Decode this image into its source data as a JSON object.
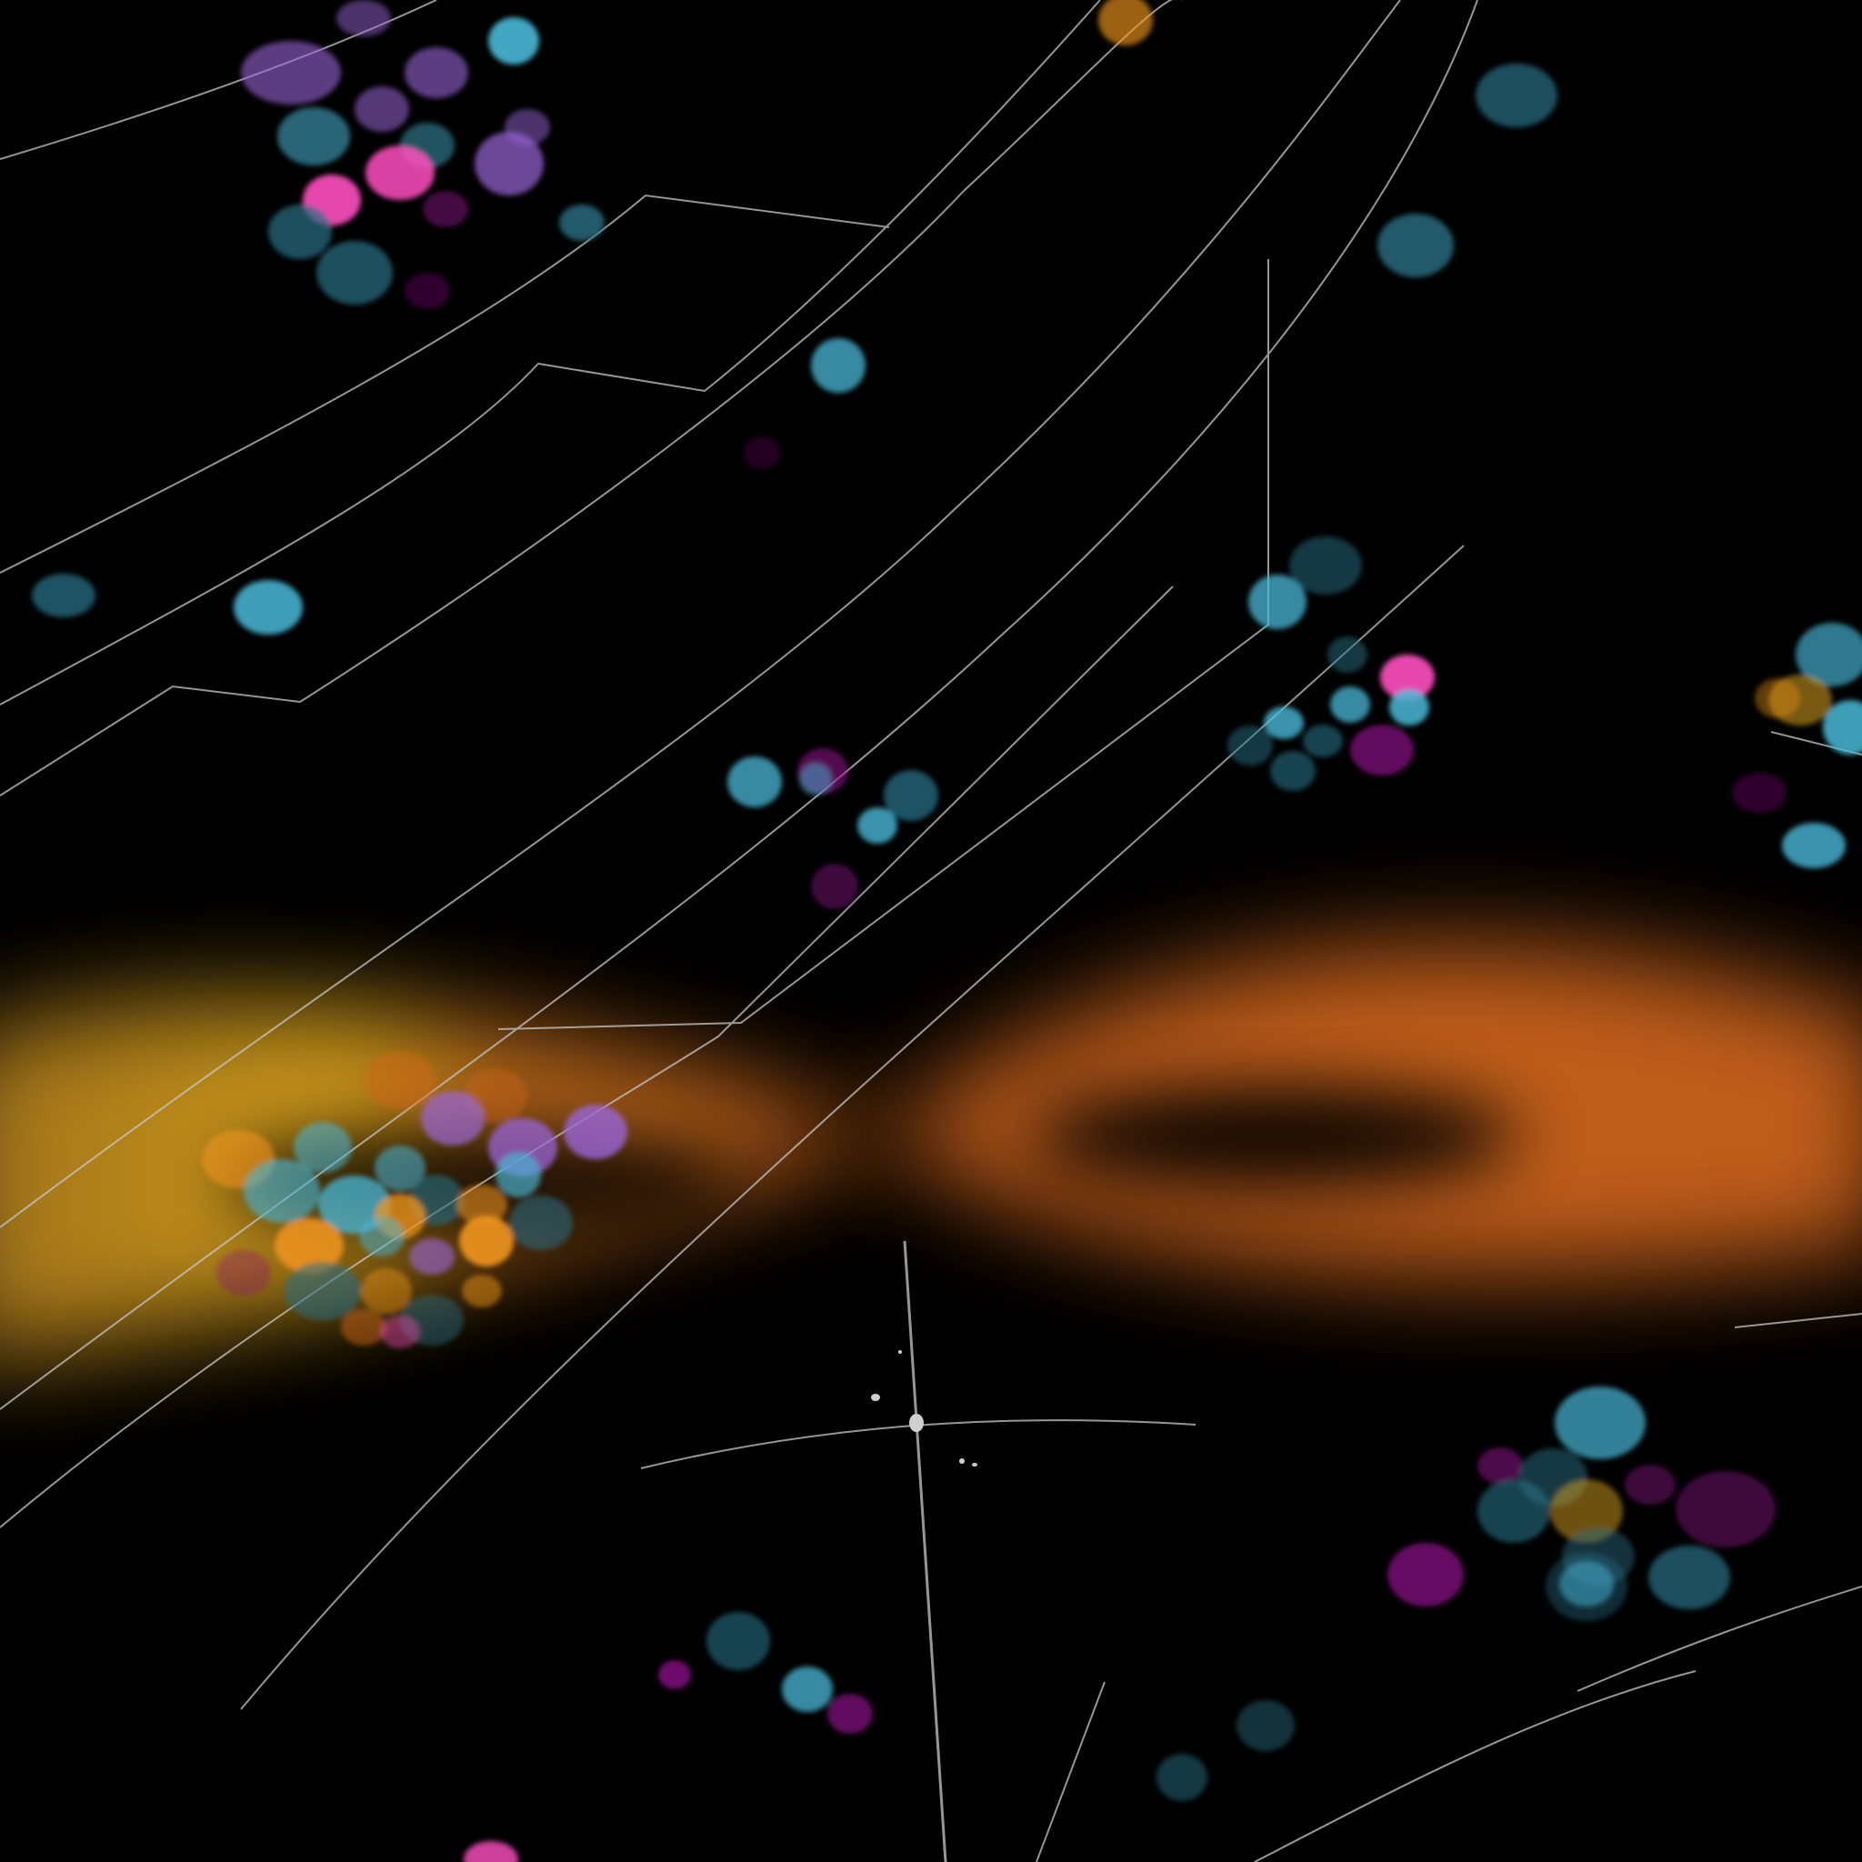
{
  "scene": {
    "background_color": "#000000",
    "line_color": "#c8c8c8",
    "colors": {
      "cyan": "#4ab8d8",
      "teal": "#2a6f86",
      "magenta": "#8a0f86",
      "pink": "#ff4fc0",
      "violet": "#9a66d8",
      "orange": "#f0951c",
      "gold": "#d8a21e",
      "burnt_orange": "#d0651a"
    }
  }
}
